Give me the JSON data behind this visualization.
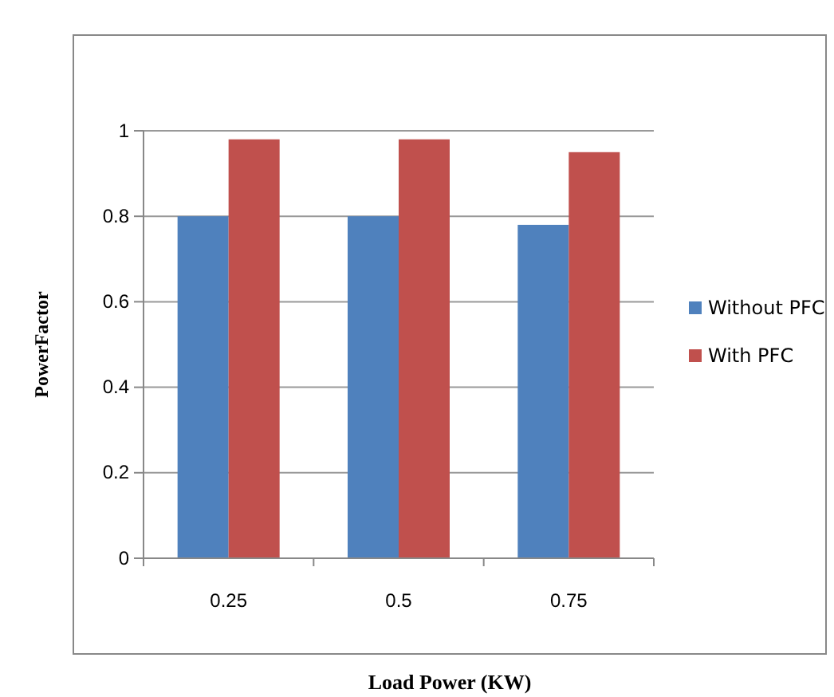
{
  "chart_data": {
    "type": "bar",
    "categories": [
      "0.25",
      "0.5",
      "0.75"
    ],
    "series": [
      {
        "name": "Without PFC",
        "color": "#4f81bd",
        "values": [
          0.8,
          0.8,
          0.78
        ]
      },
      {
        "name": "With PFC",
        "color": "#c0504d",
        "values": [
          0.98,
          0.98,
          0.95
        ]
      }
    ],
    "xlabel": "Load Power (KW)",
    "ylabel": "PowerFactor",
    "ylim": [
      0,
      1
    ],
    "yticks": [
      0,
      0.2,
      0.4,
      0.6,
      0.8,
      1
    ],
    "grid": "y",
    "legend": "right"
  }
}
